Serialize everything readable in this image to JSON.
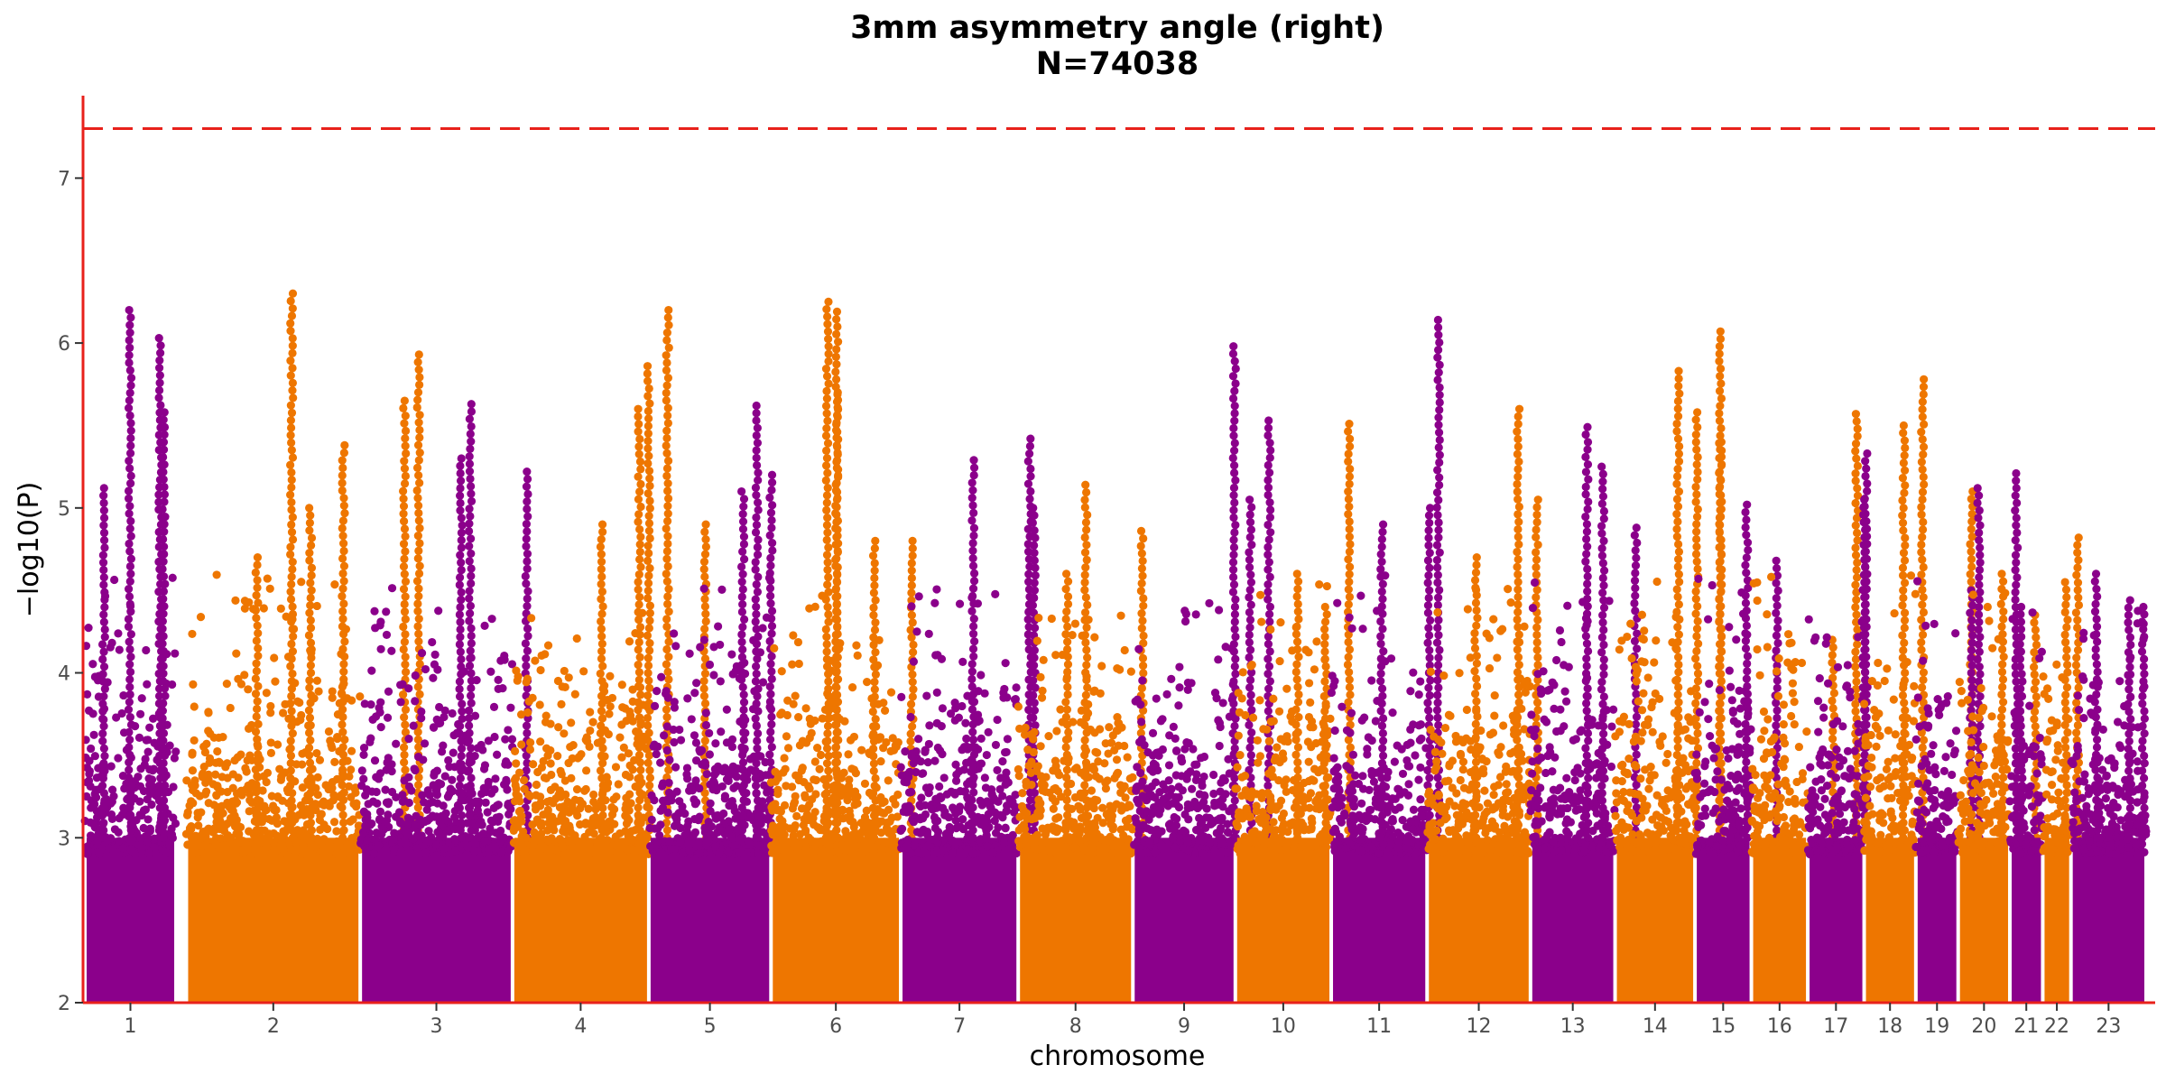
{
  "chart_data": {
    "type": "scatter",
    "title": "3mm asymmetry angle (right)",
    "subtitle": "N=74038",
    "xlabel": "chromosome",
    "ylabel": "−log10(P)",
    "ylim": [
      2,
      7.5
    ],
    "yticks": [
      2,
      3,
      4,
      5,
      6,
      7
    ],
    "significance_threshold": 7.3,
    "threshold_color": "#e8211b",
    "axis_color": "#e8211b",
    "colors": [
      "#8b008b",
      "#ee7600"
    ],
    "grid": false,
    "legend": "none",
    "chromosomes": [
      {
        "label": "1",
        "start": 0,
        "end": 97,
        "peaks": [
          [
            48,
            6.2
          ],
          [
            80,
            6.03
          ],
          [
            84,
            5.58
          ],
          [
            20,
            5.12
          ]
        ]
      },
      {
        "label": "2",
        "start": 108,
        "end": 293,
        "peaks": [
          [
            220,
            6.3
          ],
          [
            340,
            5.65
          ],
          [
            355,
            5.93
          ],
          [
            275,
            5.38
          ],
          [
            183,
            4.7
          ],
          [
            240,
            5.0
          ]
        ]
      },
      {
        "label": "3",
        "start": 293,
        "end": 455,
        "peaks": [
          [
            410,
            5.63
          ],
          [
            470,
            5.22
          ],
          [
            400,
            5.3
          ]
        ]
      },
      {
        "label": "4",
        "start": 455,
        "end": 600,
        "peaks": [
          [
            620,
            6.2
          ],
          [
            600,
            5.86
          ],
          [
            590,
            5.6
          ],
          [
            550,
            4.9
          ],
          [
            660,
            4.9
          ]
        ]
      },
      {
        "label": "5",
        "start": 600,
        "end": 730,
        "peaks": [
          [
            715,
            5.62
          ],
          [
            700,
            5.1
          ],
          [
            730,
            5.2
          ]
        ]
      },
      {
        "label": "6",
        "start": 730,
        "end": 868,
        "peaks": [
          [
            790,
            6.25
          ],
          [
            800,
            6.19
          ],
          [
            800,
            5.7
          ],
          [
            840,
            4.8
          ],
          [
            880,
            4.8
          ]
        ]
      },
      {
        "label": "7",
        "start": 868,
        "end": 993,
        "peaks": [
          [
            1005,
            5.42
          ],
          [
            945,
            5.29
          ],
          [
            1010,
            5.0
          ]
        ]
      },
      {
        "label": "8",
        "start": 993,
        "end": 1115,
        "peaks": [
          [
            1065,
            5.14
          ],
          [
            1125,
            4.86
          ],
          [
            1045,
            4.6
          ]
        ]
      },
      {
        "label": "9",
        "start": 1115,
        "end": 1224,
        "peaks": [
          [
            1223,
            5.98
          ],
          [
            1260,
            5.53
          ],
          [
            1240,
            5.05
          ]
        ]
      },
      {
        "label": "10",
        "start": 1224,
        "end": 1326,
        "peaks": [
          [
            1345,
            5.51
          ],
          [
            1290,
            4.6
          ],
          [
            1320,
            4.4
          ]
        ]
      },
      {
        "label": "11",
        "start": 1326,
        "end": 1428,
        "peaks": [
          [
            1440,
            6.14
          ],
          [
            1430,
            5.0
          ],
          [
            1380,
            4.9
          ]
        ]
      },
      {
        "label": "12",
        "start": 1428,
        "end": 1538,
        "peaks": [
          [
            1525,
            5.6
          ],
          [
            1545,
            5.05
          ],
          [
            1480,
            4.7
          ]
        ]
      },
      {
        "label": "13",
        "start": 1538,
        "end": 1628,
        "peaks": [
          [
            1615,
            5.25
          ],
          [
            1598,
            5.49
          ],
          [
            1650,
            4.88
          ]
        ]
      },
      {
        "label": "14",
        "start": 1628,
        "end": 1713,
        "peaks": [
          [
            1740,
            6.07
          ],
          [
            1695,
            5.83
          ],
          [
            1715,
            5.58
          ],
          [
            1740,
            5.4
          ]
        ]
      },
      {
        "label": "15",
        "start": 1713,
        "end": 1773,
        "peaks": [
          [
            1768,
            5.02
          ],
          [
            1800,
            4.68
          ]
        ]
      },
      {
        "label": "16",
        "start": 1773,
        "end": 1833,
        "peaks": [
          [
            1885,
            5.57
          ],
          [
            1860,
            4.2
          ]
        ]
      },
      {
        "label": "17",
        "start": 1833,
        "end": 1893,
        "peaks": [
          [
            1895,
            5.33
          ],
          [
            1893,
            5.05
          ]
        ]
      },
      {
        "label": "18",
        "start": 1893,
        "end": 1948,
        "peaks": [
          [
            1955,
            5.78
          ],
          [
            1935,
            5.5
          ],
          [
            2007,
            5.1
          ]
        ]
      },
      {
        "label": "19",
        "start": 1948,
        "end": 1993,
        "peaks": [
          [
            2015,
            5.12
          ],
          [
            2007,
            4.5
          ]
        ]
      },
      {
        "label": "20",
        "start": 1993,
        "end": 2048,
        "peaks": [
          [
            2040,
            4.6
          ],
          [
            2075,
            4.35
          ]
        ]
      },
      {
        "label": "21",
        "start": 2048,
        "end": 2083,
        "peaks": [
          [
            2055,
            5.21
          ],
          [
            2060,
            4.4
          ]
        ]
      },
      {
        "label": "22",
        "start": 2083,
        "end": 2113,
        "peaks": [
          [
            2120,
            4.82
          ],
          [
            2108,
            4.55
          ]
        ]
      },
      {
        "label": "23",
        "start": 2113,
        "end": 2193,
        "peaks": [
          [
            2140,
            4.6
          ],
          [
            2175,
            4.44
          ],
          [
            2190,
            4.4
          ]
        ]
      }
    ]
  }
}
